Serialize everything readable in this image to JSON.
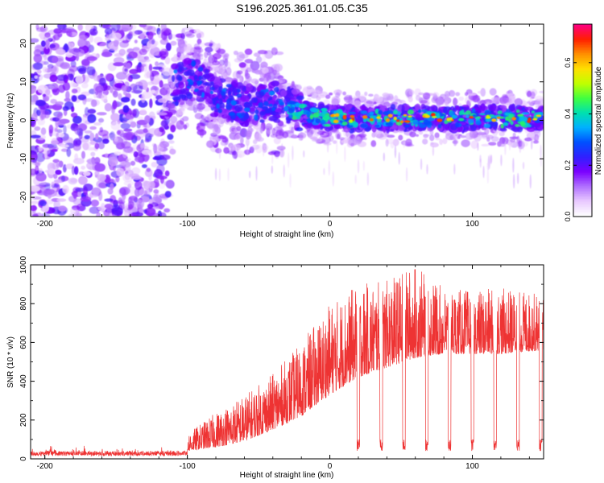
{
  "title": "S196.2025.361.01.05.C35",
  "chart_data": [
    {
      "type": "heatmap",
      "xlabel": "Height of straight line (km)",
      "ylabel": "Frequency (Hz)",
      "xlim": [
        -210,
        150
      ],
      "ylim": [
        -25,
        25
      ],
      "xticks": [
        -200,
        -100,
        0,
        100
      ],
      "yticks": [
        -20,
        -10,
        0,
        10,
        20
      ],
      "colorbar": {
        "label": "Normalized spectral amplitude",
        "range": [
          0,
          0.75
        ],
        "ticks": [
          0.0,
          0.2,
          0.4,
          0.6
        ],
        "colormap": [
          "#ffffff",
          "#e8c8ff",
          "#b070ff",
          "#7a00ff",
          "#3020ff",
          "#0050ff",
          "#00b0ff",
          "#00e0b0",
          "#40ff40",
          "#c0ff00",
          "#ffe000",
          "#ff9000",
          "#ff2000",
          "#ff0080"
        ]
      },
      "ridge_center_hz": [
        {
          "x": -110,
          "y": 9
        },
        {
          "x": -95,
          "y": 11
        },
        {
          "x": -80,
          "y": 6
        },
        {
          "x": -60,
          "y": 4
        },
        {
          "x": -40,
          "y": 5
        },
        {
          "x": -20,
          "y": 2
        },
        {
          "x": 0,
          "y": 0.5
        },
        {
          "x": 50,
          "y": 0.5
        },
        {
          "x": 100,
          "y": 0.5
        },
        {
          "x": 150,
          "y": 0.5
        }
      ]
    },
    {
      "type": "line",
      "xlabel": "Height of straight line (km)",
      "ylabel": "SNR (10 * v/v)",
      "xlim": [
        -210,
        150
      ],
      "ylim": [
        0,
        1000
      ],
      "xticks": [
        -200,
        -100,
        0,
        100
      ],
      "yticks": [
        0,
        200,
        400,
        600,
        800,
        1000
      ],
      "series": [
        {
          "name": "SNR",
          "color": "#ee3333",
          "envelope_x": [
            -210,
            -120,
            -100,
            -80,
            -60,
            -40,
            -20,
            0,
            20,
            40,
            60,
            80,
            100,
            120,
            150
          ],
          "envelope_base": [
            20,
            25,
            40,
            60,
            90,
            150,
            220,
            330,
            420,
            470,
            520,
            540,
            540,
            540,
            560
          ],
          "envelope_peak": [
            60,
            70,
            130,
            240,
            330,
            440,
            600,
            800,
            900,
            920,
            1000,
            880,
            870,
            880,
            850
          ]
        }
      ]
    }
  ]
}
